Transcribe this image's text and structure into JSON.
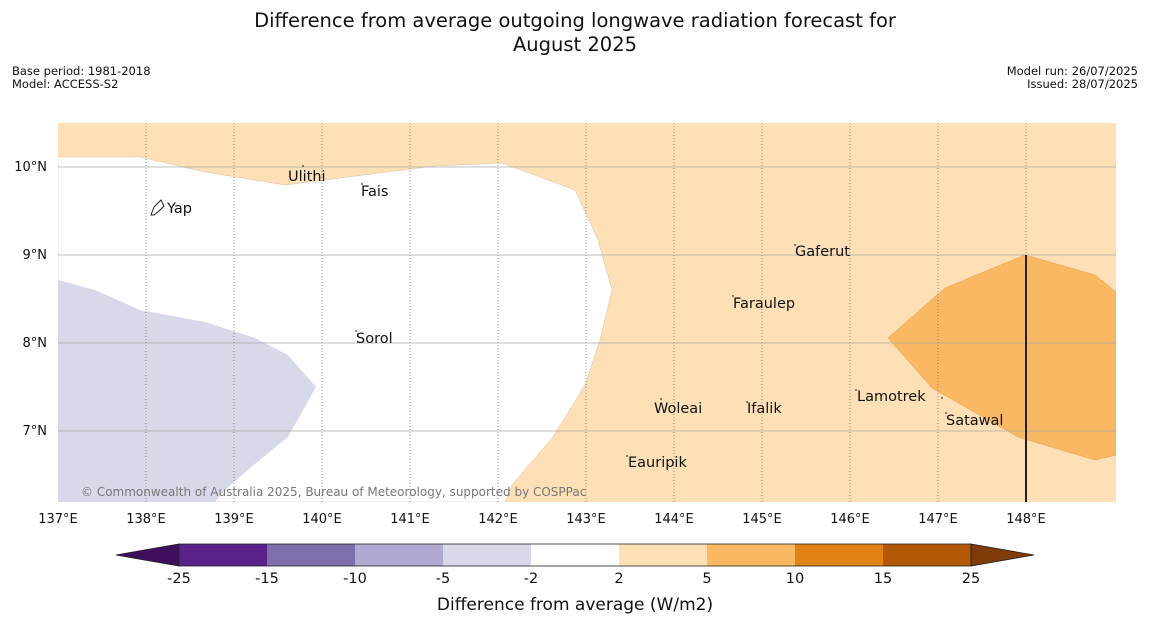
{
  "title": "Difference from average outgoing longwave radiation forecast for\nAugust 2025",
  "meta": {
    "base_period": "Base period: 1981-2018",
    "model": "Model: ACCESS-S2",
    "model_run": "Model run: 26/07/2025",
    "issued": "Issued: 28/07/2025"
  },
  "map": {
    "lon_labels": [
      "137°E",
      "138°E",
      "139°E",
      "140°E",
      "141°E",
      "142°E",
      "143°E",
      "144°E",
      "145°E",
      "146°E",
      "147°E",
      "148°E"
    ],
    "lat_labels": [
      "10°N",
      "9°N",
      "8°N",
      "7°N"
    ],
    "places": [
      "Ulithi",
      "Fais",
      "Yap",
      "Gaferut",
      "Faraulep",
      "Sorol",
      "Woleai",
      "Ifalik",
      "Lamotrek",
      "Satawal",
      "Eauripik"
    ],
    "credit": "© Commonwealth of Australia 2025, Bureau of Meteorology, supported by COSPPac",
    "gridlines": true
  },
  "colorbar": {
    "labels": [
      "-25",
      "-15",
      "-10",
      "-5",
      "-2",
      "2",
      "5",
      "10",
      "15",
      "25"
    ],
    "colors": [
      "#3f0f5e",
      "#58228a",
      "#7e6eaa",
      "#b1a9d2",
      "#d7d8e9",
      "#ffffff",
      "#fde0b6",
      "#fbb862",
      "#e08215",
      "#b35806",
      "#7f3b08"
    ],
    "title": "Difference from average (W/m2)"
  }
}
